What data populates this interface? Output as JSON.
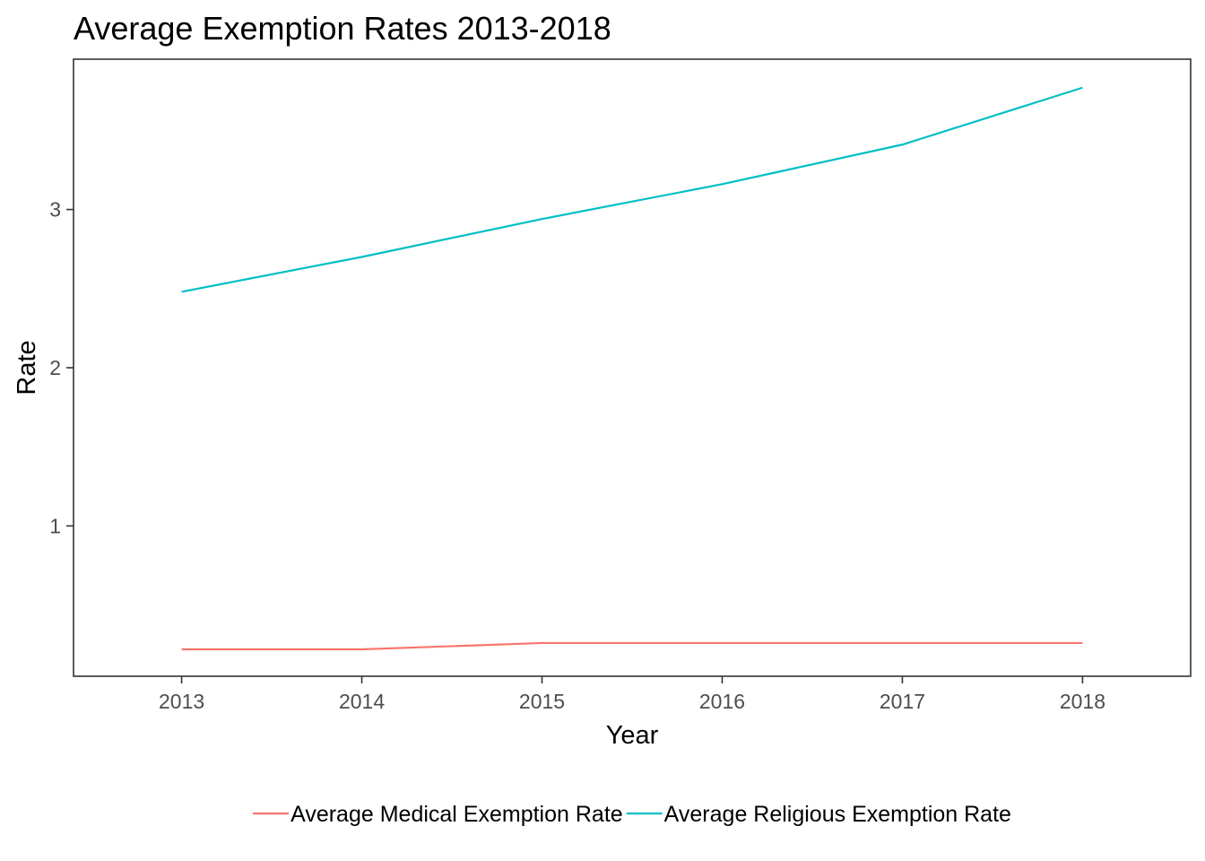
{
  "chart_data": {
    "type": "line",
    "title": "Average Exemption Rates 2013-2018",
    "xlabel": "Year",
    "ylabel": "Rate",
    "x": [
      2013,
      2014,
      2015,
      2016,
      2017,
      2018
    ],
    "xlim": [
      2012.4,
      2018.6
    ],
    "ylim": [
      0.05,
      3.95
    ],
    "yticks": [
      1,
      2,
      3
    ],
    "grid": false,
    "legend_position": "bottom",
    "series": [
      {
        "name": "Average Medical Exemption Rate",
        "color": "#F8766D",
        "values": [
          0.22,
          0.22,
          0.26,
          0.26,
          0.26,
          0.26
        ]
      },
      {
        "name": "Average Religious Exemption Rate",
        "color": "#00BFC4",
        "values": [
          2.48,
          2.7,
          2.94,
          3.16,
          3.41,
          3.77
        ]
      }
    ]
  }
}
